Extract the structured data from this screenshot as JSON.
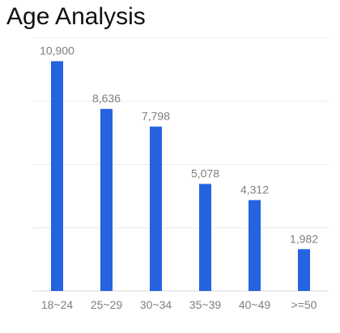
{
  "chart_data": {
    "type": "bar",
    "title": "Age Analysis",
    "categories": [
      "18~24",
      "25~29",
      "30~34",
      "35~39",
      "40~49",
      ">=50"
    ],
    "values": [
      10900,
      8636,
      7798,
      5078,
      4312,
      1982
    ],
    "value_labels": [
      "10,900",
      "8,636",
      "7,798",
      "5,078",
      "4,312",
      "1,982"
    ],
    "ylim": [
      0,
      12000
    ],
    "grid": true,
    "bar_color": "#2563e0"
  }
}
